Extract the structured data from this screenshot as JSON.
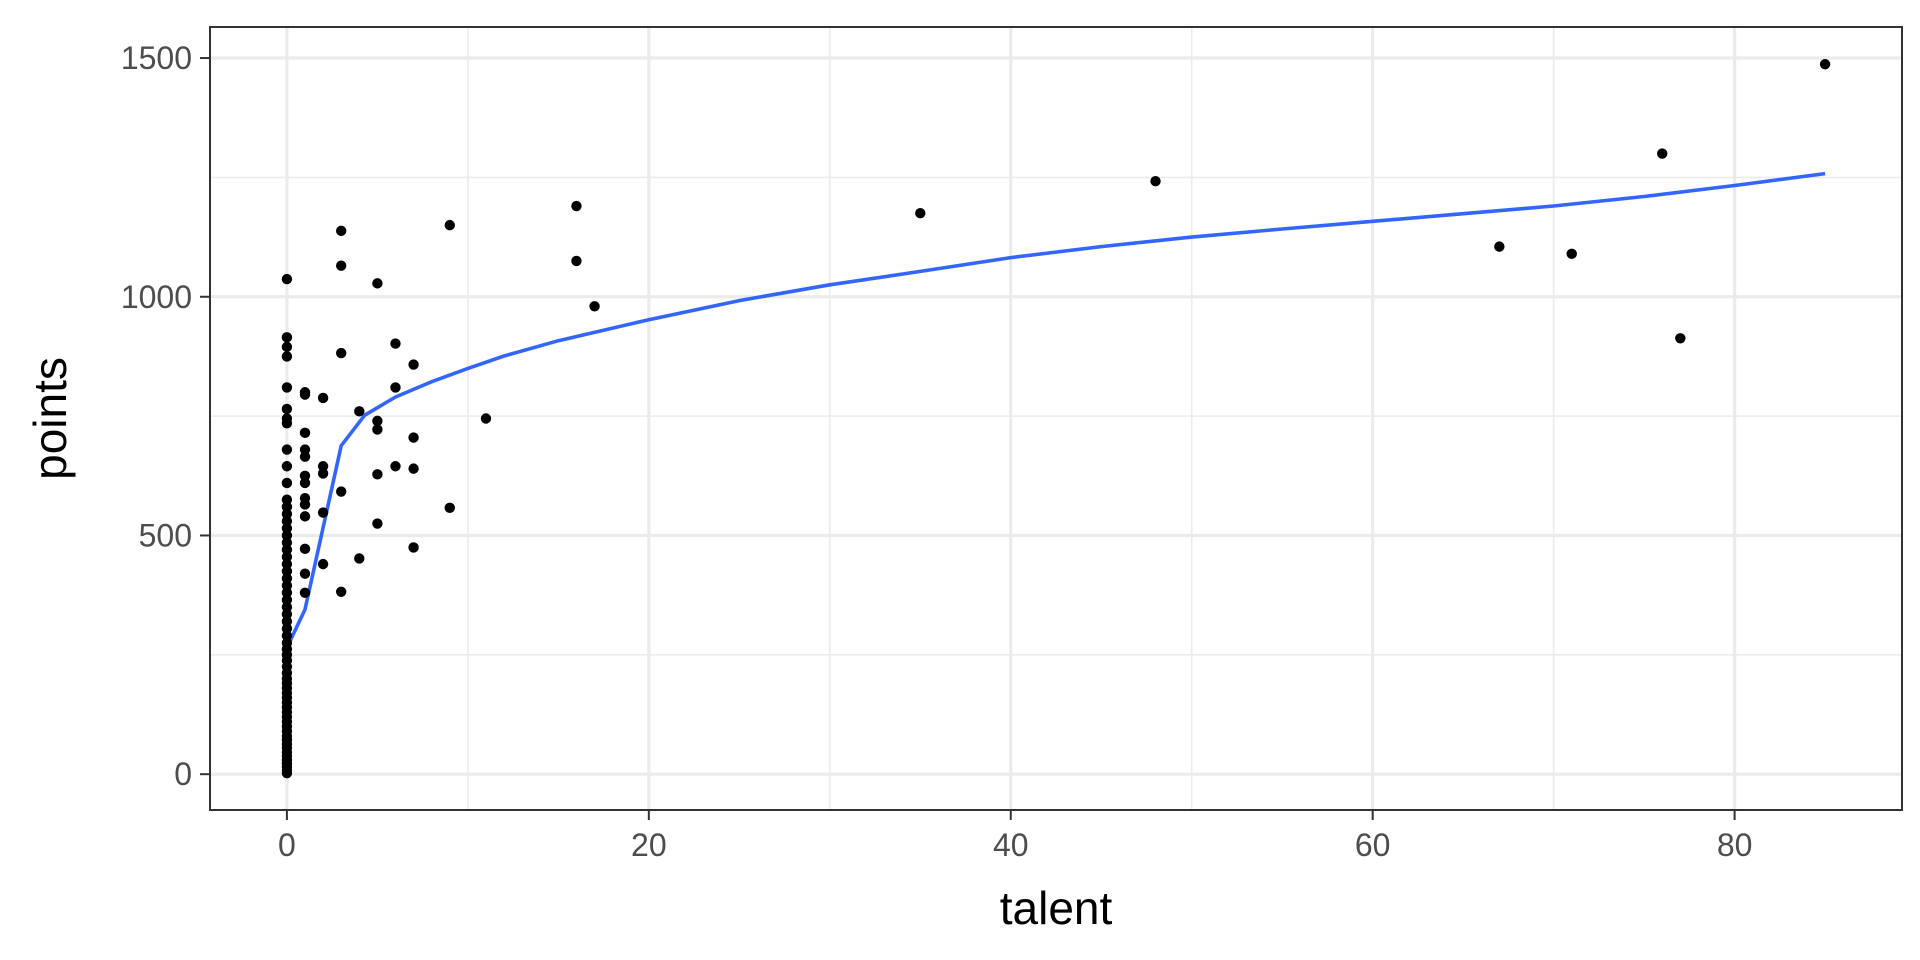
{
  "chart_data": {
    "type": "scatter",
    "xlabel": "talent",
    "ylabel": "points",
    "xlim": [
      -4.25,
      89.25
    ],
    "ylim": [
      -75,
      1565
    ],
    "x_ticks": [
      0,
      20,
      40,
      60,
      80
    ],
    "x_minor_ticks": [
      10,
      30,
      50,
      70
    ],
    "y_ticks": [
      0,
      500,
      1000,
      1500
    ],
    "y_minor_ticks": [
      250,
      750,
      1250
    ],
    "grid": true,
    "colors": {
      "points": "#000000",
      "smooth": "#3366FF",
      "grid": "#EBEBEB",
      "panel_border": "#333333"
    },
    "series": [
      {
        "type": "scatter",
        "points": [
          [
            0,
            2
          ],
          [
            0,
            8
          ],
          [
            0,
            15
          ],
          [
            0,
            22
          ],
          [
            0,
            30
          ],
          [
            0,
            38
          ],
          [
            0,
            46
          ],
          [
            0,
            55
          ],
          [
            0,
            63
          ],
          [
            0,
            72
          ],
          [
            0,
            80
          ],
          [
            0,
            90
          ],
          [
            0,
            100
          ],
          [
            0,
            110
          ],
          [
            0,
            120
          ],
          [
            0,
            130
          ],
          [
            0,
            140
          ],
          [
            0,
            150
          ],
          [
            0,
            160
          ],
          [
            0,
            170
          ],
          [
            0,
            180
          ],
          [
            0,
            190
          ],
          [
            0,
            200
          ],
          [
            0,
            212
          ],
          [
            0,
            225
          ],
          [
            0,
            238
          ],
          [
            0,
            250
          ],
          [
            0,
            262
          ],
          [
            0,
            275
          ],
          [
            0,
            290
          ],
          [
            0,
            305
          ],
          [
            0,
            320
          ],
          [
            0,
            335
          ],
          [
            0,
            350
          ],
          [
            0,
            365
          ],
          [
            0,
            380
          ],
          [
            0,
            395
          ],
          [
            0,
            410
          ],
          [
            0,
            425
          ],
          [
            0,
            440
          ],
          [
            0,
            455
          ],
          [
            0,
            470
          ],
          [
            0,
            485
          ],
          [
            0,
            500
          ],
          [
            0,
            515
          ],
          [
            0,
            530
          ],
          [
            0,
            545
          ],
          [
            0,
            560
          ],
          [
            0,
            575
          ],
          [
            0,
            610
          ],
          [
            0,
            645
          ],
          [
            0,
            680
          ],
          [
            0,
            735
          ],
          [
            0,
            745
          ],
          [
            0,
            765
          ],
          [
            0,
            810
          ],
          [
            0,
            875
          ],
          [
            0,
            895
          ],
          [
            0,
            915
          ],
          [
            0,
            1037
          ],
          [
            1,
            380
          ],
          [
            1,
            420
          ],
          [
            1,
            472
          ],
          [
            1,
            540
          ],
          [
            1,
            565
          ],
          [
            1,
            578
          ],
          [
            1,
            610
          ],
          [
            1,
            625
          ],
          [
            1,
            665
          ],
          [
            1,
            680
          ],
          [
            1,
            715
          ],
          [
            1,
            795
          ],
          [
            1,
            800
          ],
          [
            2,
            440
          ],
          [
            2,
            548
          ],
          [
            2,
            630
          ],
          [
            2,
            645
          ],
          [
            2,
            788
          ],
          [
            3,
            382
          ],
          [
            3,
            592
          ],
          [
            3,
            882
          ],
          [
            3,
            1065
          ],
          [
            3,
            1138
          ],
          [
            4,
            452
          ],
          [
            4,
            760
          ],
          [
            5,
            525
          ],
          [
            5,
            628
          ],
          [
            5,
            722
          ],
          [
            5,
            740
          ],
          [
            5,
            1028
          ],
          [
            6,
            645
          ],
          [
            6,
            810
          ],
          [
            6,
            902
          ],
          [
            7,
            475
          ],
          [
            7,
            640
          ],
          [
            7,
            705
          ],
          [
            7,
            858
          ],
          [
            9,
            558
          ],
          [
            9,
            1150
          ],
          [
            11,
            745
          ],
          [
            16,
            1075
          ],
          [
            16,
            1190
          ],
          [
            17,
            980
          ],
          [
            35,
            1175
          ],
          [
            48,
            1242
          ],
          [
            67,
            1105
          ],
          [
            71,
            1090
          ],
          [
            76,
            1300
          ],
          [
            77,
            913
          ],
          [
            85,
            1487
          ]
        ]
      },
      {
        "type": "line",
        "points": [
          [
            0,
            265
          ],
          [
            1,
            345
          ],
          [
            3,
            688
          ],
          [
            4.3,
            752
          ],
          [
            6,
            790
          ],
          [
            8,
            822
          ],
          [
            10,
            850
          ],
          [
            12,
            876
          ],
          [
            15,
            908
          ],
          [
            20,
            952
          ],
          [
            25,
            992
          ],
          [
            30,
            1025
          ],
          [
            35,
            1053
          ],
          [
            40,
            1082
          ],
          [
            45,
            1105
          ],
          [
            50,
            1125
          ],
          [
            55,
            1142
          ],
          [
            60,
            1158
          ],
          [
            65,
            1174
          ],
          [
            70,
            1190
          ],
          [
            75,
            1210
          ],
          [
            80,
            1233
          ],
          [
            85,
            1258
          ]
        ]
      }
    ]
  }
}
